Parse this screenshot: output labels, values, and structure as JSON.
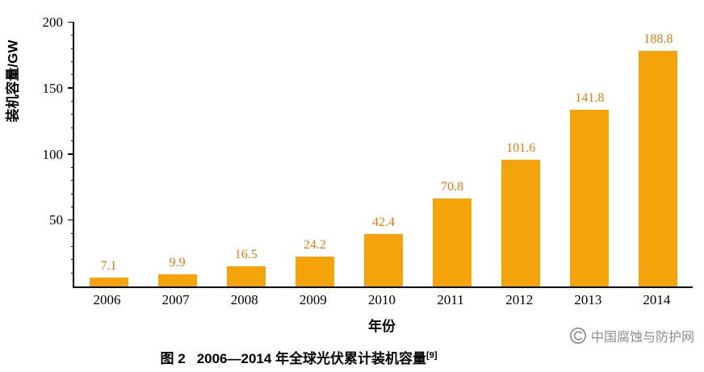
{
  "chart_data": {
    "type": "bar",
    "categories": [
      "2006",
      "2007",
      "2008",
      "2009",
      "2010",
      "2011",
      "2012",
      "2013",
      "2014"
    ],
    "values": [
      7.1,
      9.9,
      16.5,
      24.2,
      42.4,
      70.8,
      101.6,
      141.8,
      188.8
    ],
    "title": "图 2  2006—2014 年全球光伏累计装机容量",
    "xlabel": "年份",
    "ylabel": "装机容量/GW",
    "ylim": [
      0,
      200
    ],
    "yticks_major": [
      50,
      100,
      150,
      200
    ],
    "ytick_minor_step": 10,
    "grid": false,
    "legend": "none",
    "bar_color": "#F5A30B",
    "value_label_color": "#E8790C"
  },
  "caption": {
    "prefix": "图 2",
    "text": "2006—2014 年全球光伏累计装机容量",
    "ref": "[9]"
  },
  "watermark": {
    "text": "中国腐蚀与防护网"
  }
}
